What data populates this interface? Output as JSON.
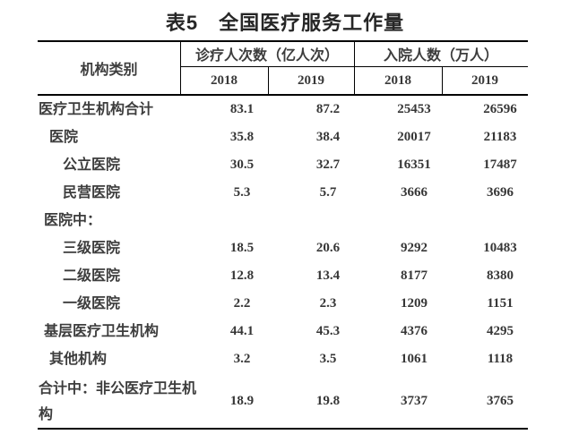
{
  "title": "表5　全国医疗服务工作量",
  "colors": {
    "background": "#ffffff",
    "line": "#000000",
    "title_text": "#262626",
    "body_text": "#3d3d3d"
  },
  "table": {
    "header": {
      "category": "机构类别",
      "group1": "诊疗人次数（亿人次）",
      "group2": "入院人数（万人）",
      "sub": [
        "2018",
        "2019",
        "2018",
        "2019"
      ]
    },
    "rows": [
      {
        "label": "医疗卫生机构合计",
        "indent": 0,
        "values": [
          "83.1",
          "87.2",
          "25453",
          "26596"
        ]
      },
      {
        "label": "医院",
        "indent": 2,
        "values": [
          "35.8",
          "38.4",
          "20017",
          "21183"
        ]
      },
      {
        "label": "公立医院",
        "indent": 3,
        "values": [
          "30.5",
          "32.7",
          "16351",
          "17487"
        ]
      },
      {
        "label": "民营医院",
        "indent": 3,
        "values": [
          "5.3",
          "5.7",
          "3666",
          "3696"
        ]
      },
      {
        "label": "医院中：",
        "indent": 1,
        "values": [
          "",
          "",
          "",
          ""
        ]
      },
      {
        "label": "三级医院",
        "indent": 3,
        "values": [
          "18.5",
          "20.6",
          "9292",
          "10483"
        ]
      },
      {
        "label": "二级医院",
        "indent": 3,
        "values": [
          "12.8",
          "13.4",
          "8177",
          "8380"
        ]
      },
      {
        "label": "一级医院",
        "indent": 3,
        "values": [
          "2.2",
          "2.3",
          "1209",
          "1151"
        ]
      },
      {
        "label": "基层医疗卫生机构",
        "indent": 1,
        "values": [
          "44.1",
          "45.3",
          "4376",
          "4295"
        ]
      },
      {
        "label": "其他机构",
        "indent": 2,
        "values": [
          "3.2",
          "3.5",
          "1061",
          "1118"
        ]
      },
      {
        "label": "合计中：非公医疗卫生机构",
        "indent": 0,
        "tall": true,
        "values": [
          "18.9",
          "19.8",
          "3737",
          "3765"
        ]
      }
    ]
  }
}
